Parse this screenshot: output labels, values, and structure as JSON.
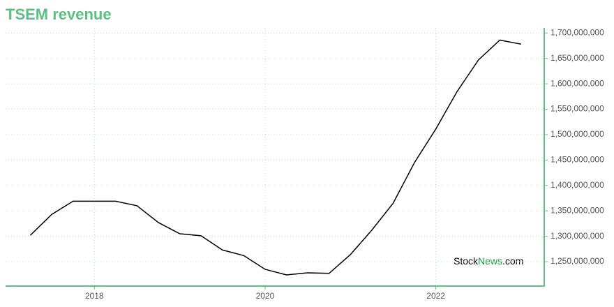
{
  "chart_data": {
    "type": "line",
    "title": "TSEM revenue",
    "watermark": [
      "Stock",
      "News",
      ".com"
    ],
    "x": [
      2017.25,
      2017.5,
      2017.75,
      2018.0,
      2018.25,
      2018.5,
      2018.75,
      2019.0,
      2019.25,
      2019.5,
      2019.75,
      2020.0,
      2020.25,
      2020.5,
      2020.75,
      2021.0,
      2021.25,
      2021.5,
      2021.75,
      2022.0,
      2022.25,
      2022.5,
      2022.75,
      2023.0
    ],
    "series": [
      {
        "name": "TSEM revenue",
        "color": "#000000",
        "values": [
          1302000000,
          1343000000,
          1369000000,
          1369000000,
          1369000000,
          1360000000,
          1327000000,
          1305000000,
          1301000000,
          1273000000,
          1262000000,
          1235000000,
          1224000000,
          1228000000,
          1227000000,
          1264000000,
          1312000000,
          1365000000,
          1445000000,
          1511000000,
          1585000000,
          1647000000,
          1686000000,
          1678000000
        ]
      }
    ],
    "xlim": [
      2016.96,
      2023.27
    ],
    "xticks": [
      2018,
      2020,
      2022
    ],
    "ylim": [
      1202000000,
      1710000000
    ],
    "yticks": [
      {
        "value": 1250000000,
        "label": "1,250,000,000"
      },
      {
        "value": 1300000000,
        "label": "1,300,000,000"
      },
      {
        "value": 1350000000,
        "label": "1,350,000,000"
      },
      {
        "value": 1400000000,
        "label": "1,400,000,000"
      },
      {
        "value": 1450000000,
        "label": "1,450,000,000"
      },
      {
        "value": 1500000000,
        "label": "1,500,000,000"
      },
      {
        "value": 1550000000,
        "label": "1,550,000,000"
      },
      {
        "value": 1600000000,
        "label": "1,600,000,000"
      },
      {
        "value": 1650000000,
        "label": "1,650,000,000"
      },
      {
        "value": 1700000000,
        "label": "1,700,000,000"
      }
    ],
    "grid": true,
    "axis_color": "#5cbf84"
  }
}
